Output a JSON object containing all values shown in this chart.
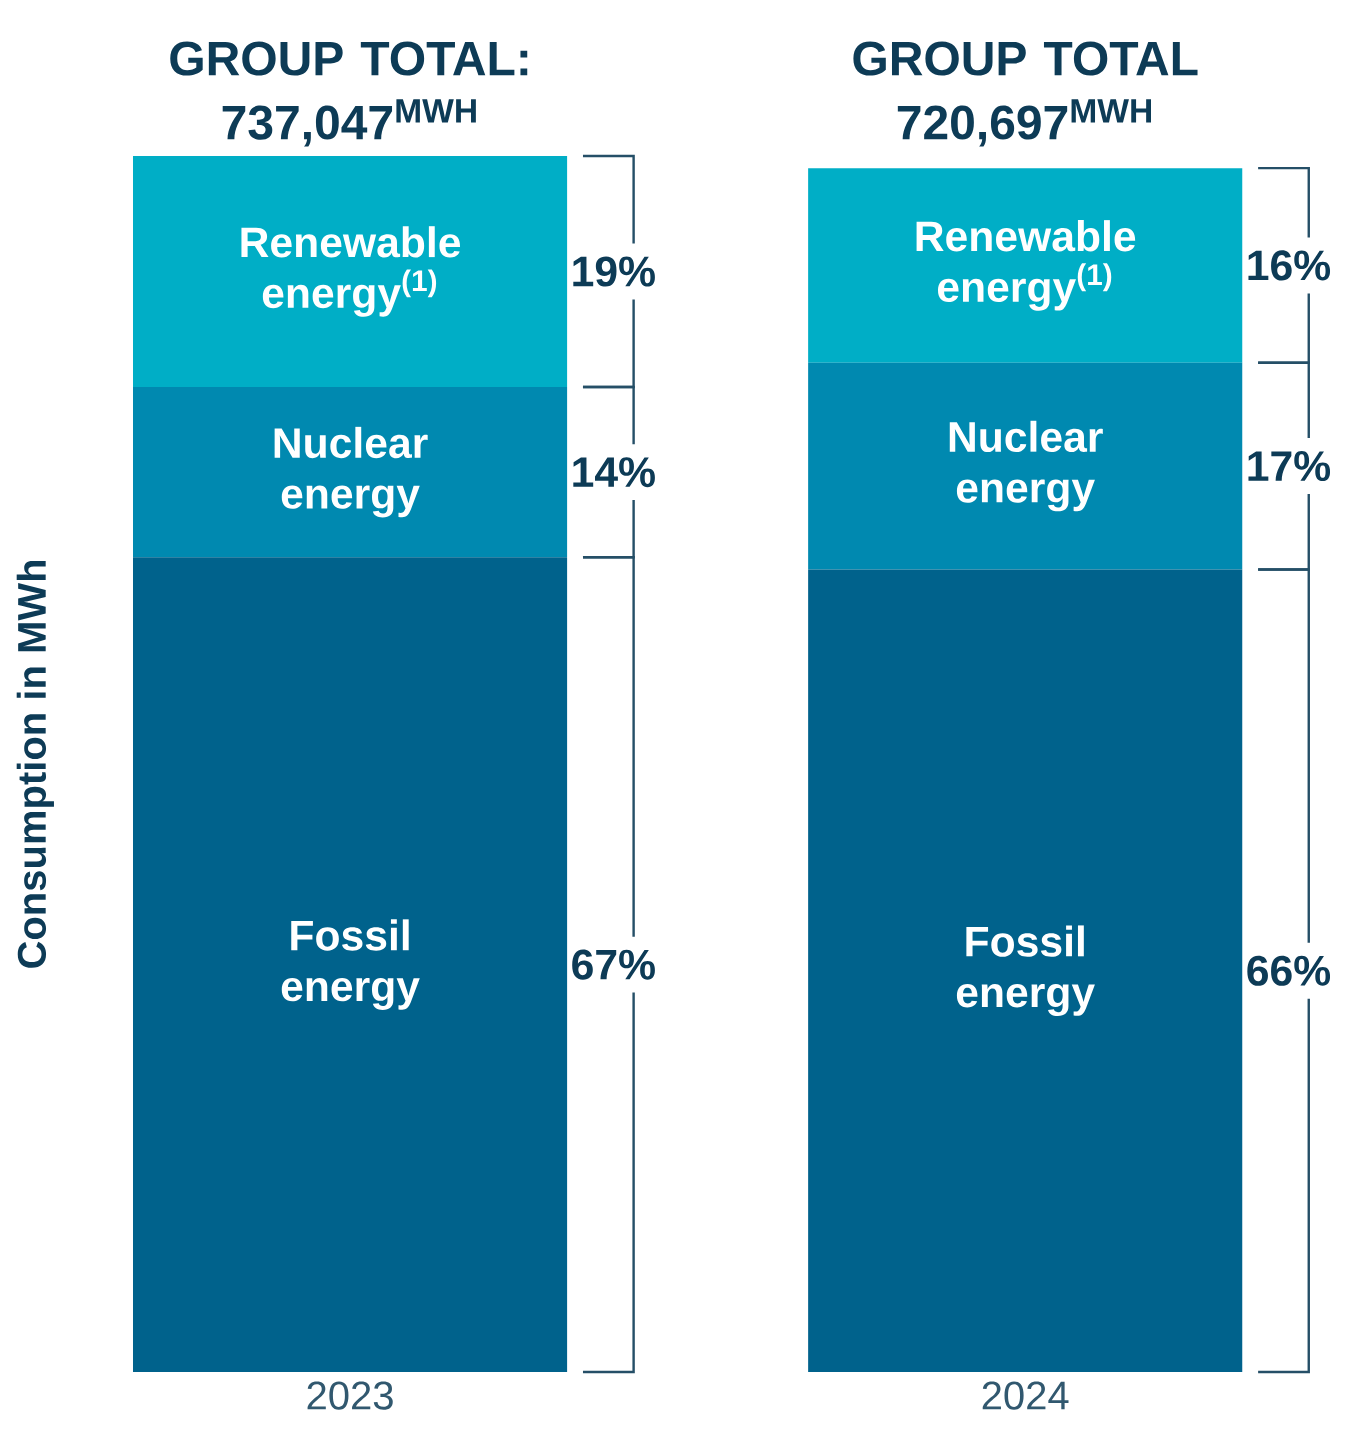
{
  "chart_data": {
    "type": "bar",
    "stacked": true,
    "ylabel": "Consumption in MWh",
    "categories": [
      "2023",
      "2024"
    ],
    "series": [
      {
        "name": "Fossil energy",
        "color": "#00628c",
        "values": [
          67,
          66
        ],
        "value_labels": [
          "67%",
          "66%"
        ]
      },
      {
        "name": "Nuclear energy",
        "color": "#0089b0",
        "values": [
          14,
          17
        ],
        "value_labels": [
          "14%",
          "17%"
        ]
      },
      {
        "name": "Renewable energy$^{(1)}$",
        "color": "#00aec6",
        "values": [
          19,
          16
        ],
        "value_labels": [
          "19%",
          "16%"
        ]
      }
    ],
    "ylim": [
      0,
      100
    ],
    "tick_labels": "x",
    "annotations": [
      "GROUP TOTAL: 737,047$^{MWH}$",
      "GROUP TOTAL 720,697$^{MWH}$"
    ]
  }
}
